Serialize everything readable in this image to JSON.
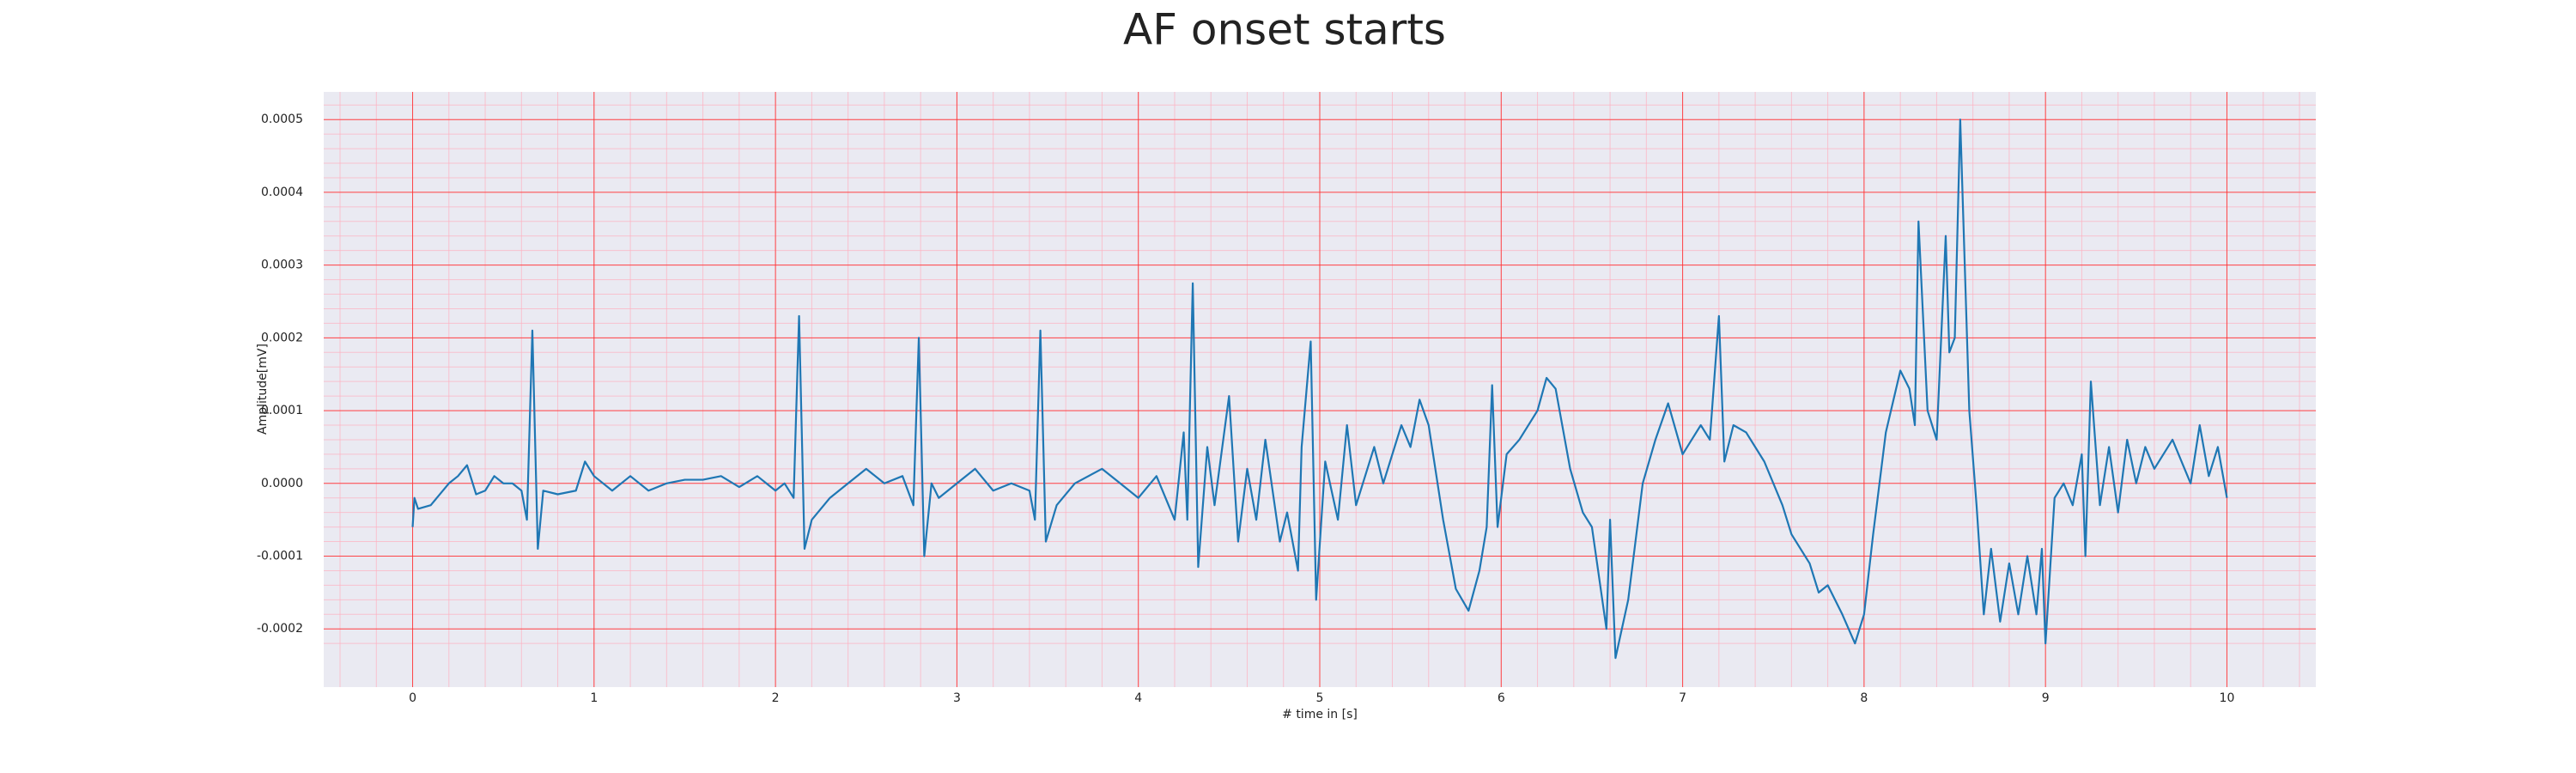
{
  "chart_data": {
    "type": "line",
    "title": "AF onset starts",
    "xlabel": "# time in [s]",
    "ylabel": "Amplitude[mV]",
    "color": "#1f77b4",
    "grid": true,
    "minor_grid": true,
    "xlim": [
      -0.49,
      10.49
    ],
    "ylim": [
      -0.00028,
      0.000538
    ],
    "xticks": [
      0,
      1,
      2,
      3,
      4,
      5,
      6,
      7,
      8,
      9,
      10
    ],
    "yticks": [
      -0.0002,
      -0.0001,
      {
        "value": 0,
        "label": "0.0000"
      },
      0.0001,
      0.0002,
      0.0003,
      0.0004,
      0.0005
    ],
    "x": [
      0,
      0.01,
      0.03,
      0.1,
      0.2,
      0.25,
      0.3,
      0.35,
      0.4,
      0.45,
      0.5,
      0.55,
      0.6,
      0.63,
      0.66,
      0.69,
      0.72,
      0.8,
      0.9,
      0.95,
      1.0,
      1.1,
      1.2,
      1.3,
      1.4,
      1.5,
      1.6,
      1.7,
      1.8,
      1.9,
      2.0,
      2.05,
      2.1,
      2.13,
      2.16,
      2.2,
      2.3,
      2.4,
      2.5,
      2.6,
      2.7,
      2.76,
      2.79,
      2.82,
      2.86,
      2.9,
      3.0,
      3.1,
      3.2,
      3.3,
      3.4,
      3.43,
      3.46,
      3.49,
      3.55,
      3.65,
      3.8,
      3.9,
      4.0,
      4.1,
      4.2,
      4.25,
      4.27,
      4.3,
      4.33,
      4.38,
      4.42,
      4.5,
      4.55,
      4.6,
      4.65,
      4.7,
      4.78,
      4.82,
      4.88,
      4.9,
      4.95,
      4.98,
      5.03,
      5.1,
      5.15,
      5.2,
      5.3,
      5.35,
      5.45,
      5.5,
      5.55,
      5.6,
      5.68,
      5.75,
      5.82,
      5.88,
      5.92,
      5.95,
      5.98,
      6.03,
      6.1,
      6.2,
      6.25,
      6.3,
      6.38,
      6.45,
      6.5,
      6.58,
      6.6,
      6.63,
      6.7,
      6.78,
      6.85,
      6.92,
      7.0,
      7.05,
      7.1,
      7.15,
      7.2,
      7.23,
      7.28,
      7.35,
      7.45,
      7.55,
      7.6,
      7.7,
      7.75,
      7.8,
      7.88,
      7.95,
      8.0,
      8.05,
      8.12,
      8.2,
      8.25,
      8.28,
      8.3,
      8.35,
      8.4,
      8.45,
      8.47,
      8.5,
      8.53,
      8.58,
      8.62,
      8.66,
      8.7,
      8.75,
      8.8,
      8.85,
      8.9,
      8.95,
      8.98,
      9.0,
      9.05,
      9.1,
      9.15,
      9.2,
      9.22,
      9.25,
      9.3,
      9.35,
      9.4,
      9.45,
      9.5,
      9.55,
      9.6,
      9.7,
      9.8,
      9.85,
      9.9,
      9.95,
      10.0
    ],
    "values": [
      -6e-05,
      -2e-05,
      -3.5e-05,
      -3e-05,
      0,
      1e-05,
      2.5e-05,
      -1.5e-05,
      -1e-05,
      1e-05,
      0,
      0,
      -1e-05,
      -5e-05,
      0.00021,
      -9e-05,
      -1e-05,
      -1.5e-05,
      -1e-05,
      3e-05,
      1e-05,
      -1e-05,
      1e-05,
      -1e-05,
      0,
      5e-06,
      5e-06,
      1e-05,
      -5e-06,
      1e-05,
      -1e-05,
      0,
      -2e-05,
      0.00023,
      -9e-05,
      -5e-05,
      -2e-05,
      0,
      2e-05,
      0,
      1e-05,
      -3e-05,
      0.0002,
      -0.0001,
      0,
      -2e-05,
      0,
      2e-05,
      -1e-05,
      0,
      -1e-05,
      -5e-05,
      0.00021,
      -8e-05,
      -3e-05,
      0,
      2e-05,
      0,
      -2e-05,
      1e-05,
      -5e-05,
      7e-05,
      -5e-05,
      0.000275,
      -0.000115,
      5e-05,
      -3e-05,
      0.00012,
      -8e-05,
      2e-05,
      -5e-05,
      6e-05,
      -8e-05,
      -4e-05,
      -0.00012,
      5e-05,
      0.000195,
      -0.00016,
      3e-05,
      -5e-05,
      8e-05,
      -3e-05,
      5e-05,
      0,
      8e-05,
      5e-05,
      0.000115,
      8e-05,
      -5e-05,
      -0.000145,
      -0.000175,
      -0.00012,
      -6e-05,
      0.000135,
      -6e-05,
      4e-05,
      6e-05,
      0.0001,
      0.000145,
      0.00013,
      2e-05,
      -4e-05,
      -6e-05,
      -0.0002,
      -5e-05,
      -0.00024,
      -0.00016,
      0,
      6e-05,
      0.00011,
      4e-05,
      6e-05,
      8e-05,
      6e-05,
      0.00023,
      3e-05,
      8e-05,
      7e-05,
      3e-05,
      -3e-05,
      -7e-05,
      -0.00011,
      -0.00015,
      -0.00014,
      -0.00018,
      -0.00022,
      -0.00018,
      -7e-05,
      7e-05,
      0.000155,
      0.00013,
      8e-05,
      0.00036,
      0.0001,
      6e-05,
      0.00034,
      0.00018,
      0.0002,
      0.0005,
      0.0001,
      -3e-05,
      -0.00018,
      -9e-05,
      -0.00019,
      -0.00011,
      -0.00018,
      -0.0001,
      -0.00018,
      -9e-05,
      -0.00022,
      -2e-05,
      0,
      -3e-05,
      4e-05,
      -0.0001,
      0.00014,
      -3e-05,
      5e-05,
      -4e-05,
      6e-05,
      0,
      5e-05,
      2e-05,
      6e-05,
      0,
      8e-05,
      1e-05,
      5e-05,
      -2e-05
    ]
  }
}
